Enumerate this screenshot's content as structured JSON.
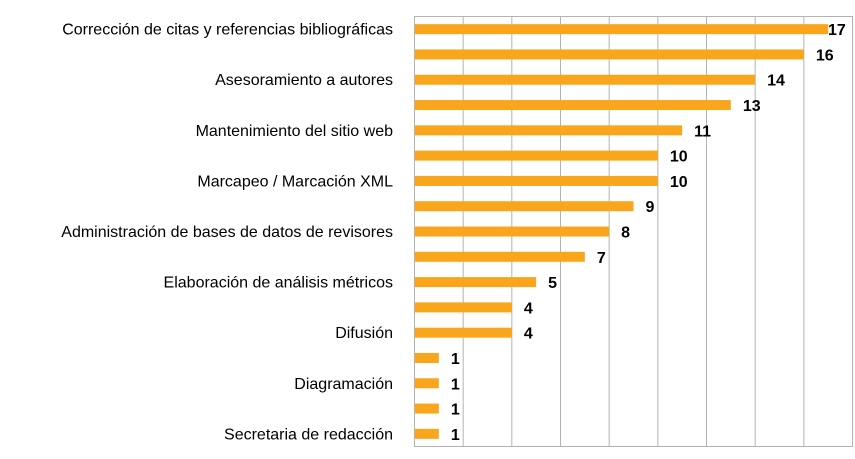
{
  "chart_data": {
    "type": "bar",
    "orientation": "horizontal",
    "title": "",
    "xlabel": "",
    "ylabel": "",
    "categories": [
      "Corrección de citas y referencias bibliográficas",
      "",
      "Asesoramiento a autores",
      "",
      "Mantenimiento del sitio web",
      "",
      "Marcapeo / Marcación XML",
      "",
      "Administración de bases de datos de revisores",
      "",
      "Elaboración de análisis métricos",
      "",
      "Difusión",
      "",
      "Diagramación",
      "",
      "Secretaria de redacción"
    ],
    "values": [
      17,
      16,
      14,
      13,
      11,
      10,
      10,
      9,
      8,
      7,
      5,
      4,
      4,
      1,
      1,
      1,
      1
    ],
    "xlim": [
      0,
      18
    ],
    "grid_step": 2,
    "grid": true,
    "x_tick_labels_shown": false,
    "data_labels": true,
    "legend": "none",
    "colors": {
      "bar": "#F9A61C",
      "grid": "#B3B3B3"
    }
  }
}
